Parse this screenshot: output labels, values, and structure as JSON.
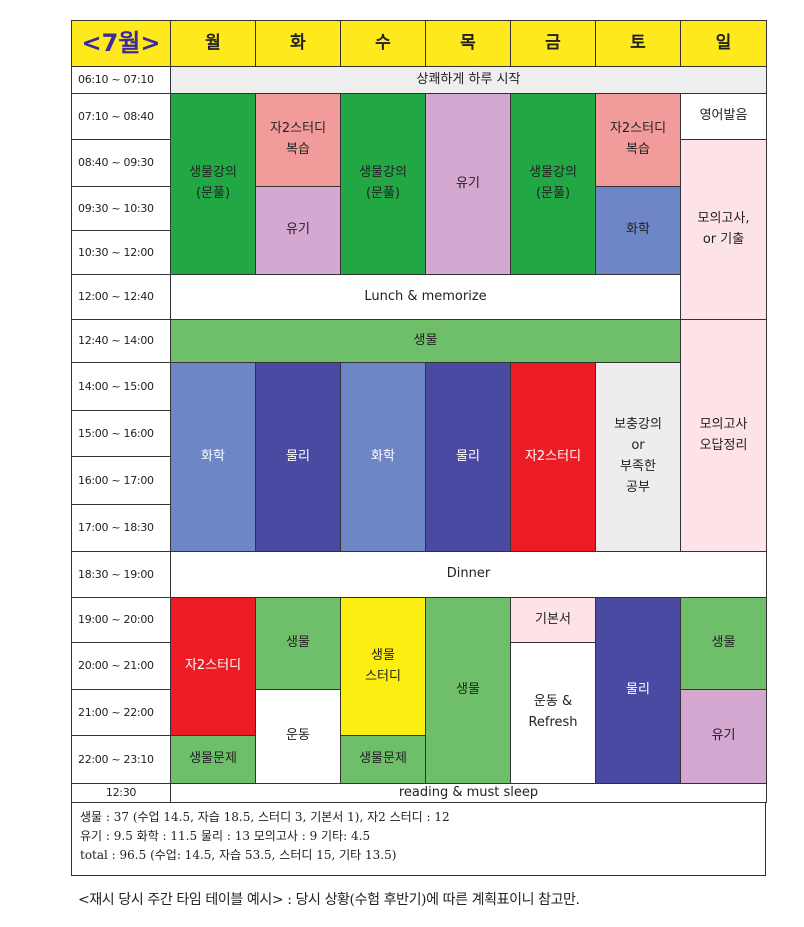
{
  "header": {
    "month": "<7월>",
    "days": [
      "월",
      "화",
      "수",
      "목",
      "금",
      "토",
      "일"
    ]
  },
  "times": [
    "06:10 ~ 07:10",
    "07:10 ~ 08:40",
    "08:40 ~ 09:30",
    "09:30 ~ 10:30",
    "10:30 ~ 12:00",
    "12:00 ~ 12:40",
    "12:40 ~ 14:00",
    "14:00 ~ 15:00",
    "15:00 ~ 16:00",
    "16:00 ~ 17:00",
    "17:00 ~ 18:30",
    "18:30 ~ 19:00",
    "19:00 ~ 20:00",
    "20:00 ~ 21:00",
    "21:00 ~ 22:00",
    "22:00 ~ 23:10",
    "12:30"
  ],
  "colors": {
    "green": "#22a745",
    "pink": "#f29b9b",
    "purple_light": "#d4a8d0",
    "blue_light": "#6f86c6",
    "navy": "#4a4aa2",
    "red": "#ed1c24",
    "lightgreen": "#6fbf6a",
    "gray": "#ededed",
    "yellow": "#fbee10",
    "lightpink": "#fde3e8",
    "white": "#ffffff",
    "header_yellow": "#fde91c",
    "month_text": "#3a2aa0"
  },
  "blocks": {
    "morning_start": "상쾌하게 하루 시작",
    "mon_morning": "생물강의\n(문풀)",
    "tue_study": "자2스터디\n복습",
    "tue_organic": "유기",
    "wed_morning": "생물강의\n(문풀)",
    "thu_organic": "유기",
    "fri_morning": "생물강의\n(문풀)",
    "sat_study": "자2스터디\n복습",
    "sat_chem": "화학",
    "sun_pron": "영어발음",
    "sun_mock": "모의고사,\nor 기출",
    "lunch": "Lunch & memorize",
    "bio_noon": "생물",
    "mon_chem": "화학",
    "tue_phys": "물리",
    "wed_chem": "화학",
    "thu_phys": "물리",
    "fri_study": "자2스터디",
    "sat_supp": "보충강의\nor\n부족한\n공부",
    "sun_review": "모의고사\n오답정리",
    "dinner": "Dinner",
    "mon_study": "자2스터디",
    "mon_bioq": "생물문제",
    "tue_bio": "생물",
    "tue_exercise": "운동",
    "wed_biostudy": "생물\n스터디",
    "wed_bioq": "생물문제",
    "thu_bio": "생물",
    "fri_basic": "기본서",
    "fri_exercise": "운동 &\nRefresh",
    "sat_phys": "물리",
    "sun_bio": "생물",
    "sun_organic": "유기",
    "sleep": "reading & must sleep"
  },
  "summary": {
    "line1": "생물 : 37 (수업 14.5, 자습 18.5, 스터디 3, 기본서 1),  자2 스터디 : 12",
    "line2": "유기 : 9.5   화학 : 11.5     물리 : 13     모의고사 : 9     기타: 4.5",
    "line3": "total : 96.5 (수업: 14.5, 자습 53.5, 스터디 15, 기타 13.5)"
  },
  "caption": "<재시 당시 주간 타임 테이블 예시> : 당시 상황(수험 후반기)에 따른 계획표이니 참고만."
}
